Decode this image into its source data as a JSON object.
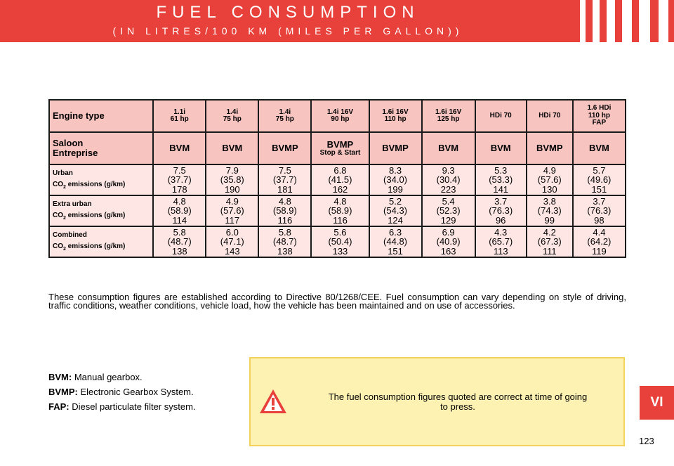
{
  "header": {
    "title": "FUEL CONSUMPTION",
    "subtitle": "(IN LITRES/100 KM (MILES PER GALLON))"
  },
  "table": {
    "engine_label": "Engine type",
    "engines": [
      {
        "name": "1.1i",
        "power": "61 hp"
      },
      {
        "name": "1.4i",
        "power": "75 hp"
      },
      {
        "name": "1.4i",
        "power": "75 hp"
      },
      {
        "name": "1.4i 16V",
        "power": "90 hp"
      },
      {
        "name": "1.6i 16V",
        "power": "110 hp"
      },
      {
        "name": "1.6i 16V",
        "power": "125 hp"
      },
      {
        "name": "HDi 70",
        "power": ""
      },
      {
        "name": "HDi 70",
        "power": ""
      },
      {
        "name": "1.6 HDi",
        "power": "110 hp",
        "extra": "FAP"
      }
    ],
    "body_label_1": "Saloon",
    "body_label_2": "Entreprise",
    "gearboxes": [
      {
        "name": "BVM",
        "note": ""
      },
      {
        "name": "BVM",
        "note": ""
      },
      {
        "name": "BVMP",
        "note": ""
      },
      {
        "name": "BVMP",
        "note": "Stop & Start"
      },
      {
        "name": "BVMP",
        "note": ""
      },
      {
        "name": "BVM",
        "note": ""
      },
      {
        "name": "BVM",
        "note": ""
      },
      {
        "name": "BVMP",
        "note": ""
      },
      {
        "name": "BVM",
        "note": ""
      }
    ],
    "rows": [
      {
        "label": "Urban",
        "co2_prefix": "CO",
        "co2_sub": "2",
        "co2_suffix": " emissions (g/km)",
        "cells": [
          {
            "l": "7.5",
            "mpg": "(37.7)",
            "co2": "178"
          },
          {
            "l": "7.9",
            "mpg": "(35.8)",
            "co2": "190"
          },
          {
            "l": "7.5",
            "mpg": "(37.7)",
            "co2": "181"
          },
          {
            "l": "6.8",
            "mpg": "(41.5)",
            "co2": "162"
          },
          {
            "l": "8.3",
            "mpg": "(34.0)",
            "co2": "199"
          },
          {
            "l": "9.3",
            "mpg": "(30.4)",
            "co2": "223"
          },
          {
            "l": "5.3",
            "mpg": "(53.3)",
            "co2": "141"
          },
          {
            "l": "4.9",
            "mpg": "(57.6)",
            "co2": "130"
          },
          {
            "l": "5.7",
            "mpg": "(49.6)",
            "co2": "151"
          }
        ]
      },
      {
        "label": "Extra urban",
        "co2_prefix": "CO",
        "co2_sub": "2",
        "co2_suffix": " emissions (g/km)",
        "cells": [
          {
            "l": "4.8",
            "mpg": "(58.9)",
            "co2": "114"
          },
          {
            "l": "4.9",
            "mpg": "(57.6)",
            "co2": "117"
          },
          {
            "l": "4.8",
            "mpg": "(58.9)",
            "co2": "116"
          },
          {
            "l": "4.8",
            "mpg": "(58.9)",
            "co2": "116"
          },
          {
            "l": "5.2",
            "mpg": "(54.3)",
            "co2": "124"
          },
          {
            "l": "5.4",
            "mpg": "(52.3)",
            "co2": "129"
          },
          {
            "l": "3.7",
            "mpg": "(76.3)",
            "co2": "96"
          },
          {
            "l": "3.8",
            "mpg": "(74.3)",
            "co2": "99"
          },
          {
            "l": "3.7",
            "mpg": "(76.3)",
            "co2": "98"
          }
        ]
      },
      {
        "label": "Combined",
        "co2_prefix": "CO",
        "co2_sub": "2",
        "co2_suffix": " emissions (g/km)",
        "cells": [
          {
            "l": "5.8",
            "mpg": "(48.7)",
            "co2": "138"
          },
          {
            "l": "6.0",
            "mpg": "(47.1)",
            "co2": "143"
          },
          {
            "l": "5.8",
            "mpg": "(48.7)",
            "co2": "138"
          },
          {
            "l": "5.6",
            "mpg": "(50.4)",
            "co2": "133"
          },
          {
            "l": "6.3",
            "mpg": "(44.8)",
            "co2": "151"
          },
          {
            "l": "6.9",
            "mpg": "(40.9)",
            "co2": "163"
          },
          {
            "l": "4.3",
            "mpg": "(65.7)",
            "co2": "113"
          },
          {
            "l": "4.2",
            "mpg": "(67.3)",
            "co2": "111"
          },
          {
            "l": "4.4",
            "mpg": "(64.2)",
            "co2": "119"
          }
        ]
      }
    ]
  },
  "note": "These consumption figures are established according to Directive 80/1268/CEE. Fuel consumption can vary depending on style of driving, traffic conditions, weather conditions, vehicle load, how the vehicle has been maintained and on use of accessories.",
  "legend": [
    {
      "term": "BVM:",
      "desc": " Manual gearbox."
    },
    {
      "term": "BVMP:",
      "desc": " Electronic Gearbox System."
    },
    {
      "term": "FAP:",
      "desc": " Diesel particulate filter system."
    }
  ],
  "warning": {
    "icon": "warning-triangle-icon",
    "text": "The fuel consumption figures quoted are correct at time of going to press."
  },
  "chapter_tab": "VI",
  "page_number": "123",
  "colors": {
    "accent": "#e8403a",
    "table_header": "#f7c4bf",
    "table_cell": "#fde6e3",
    "warning_bg": "#fdf2b2"
  }
}
